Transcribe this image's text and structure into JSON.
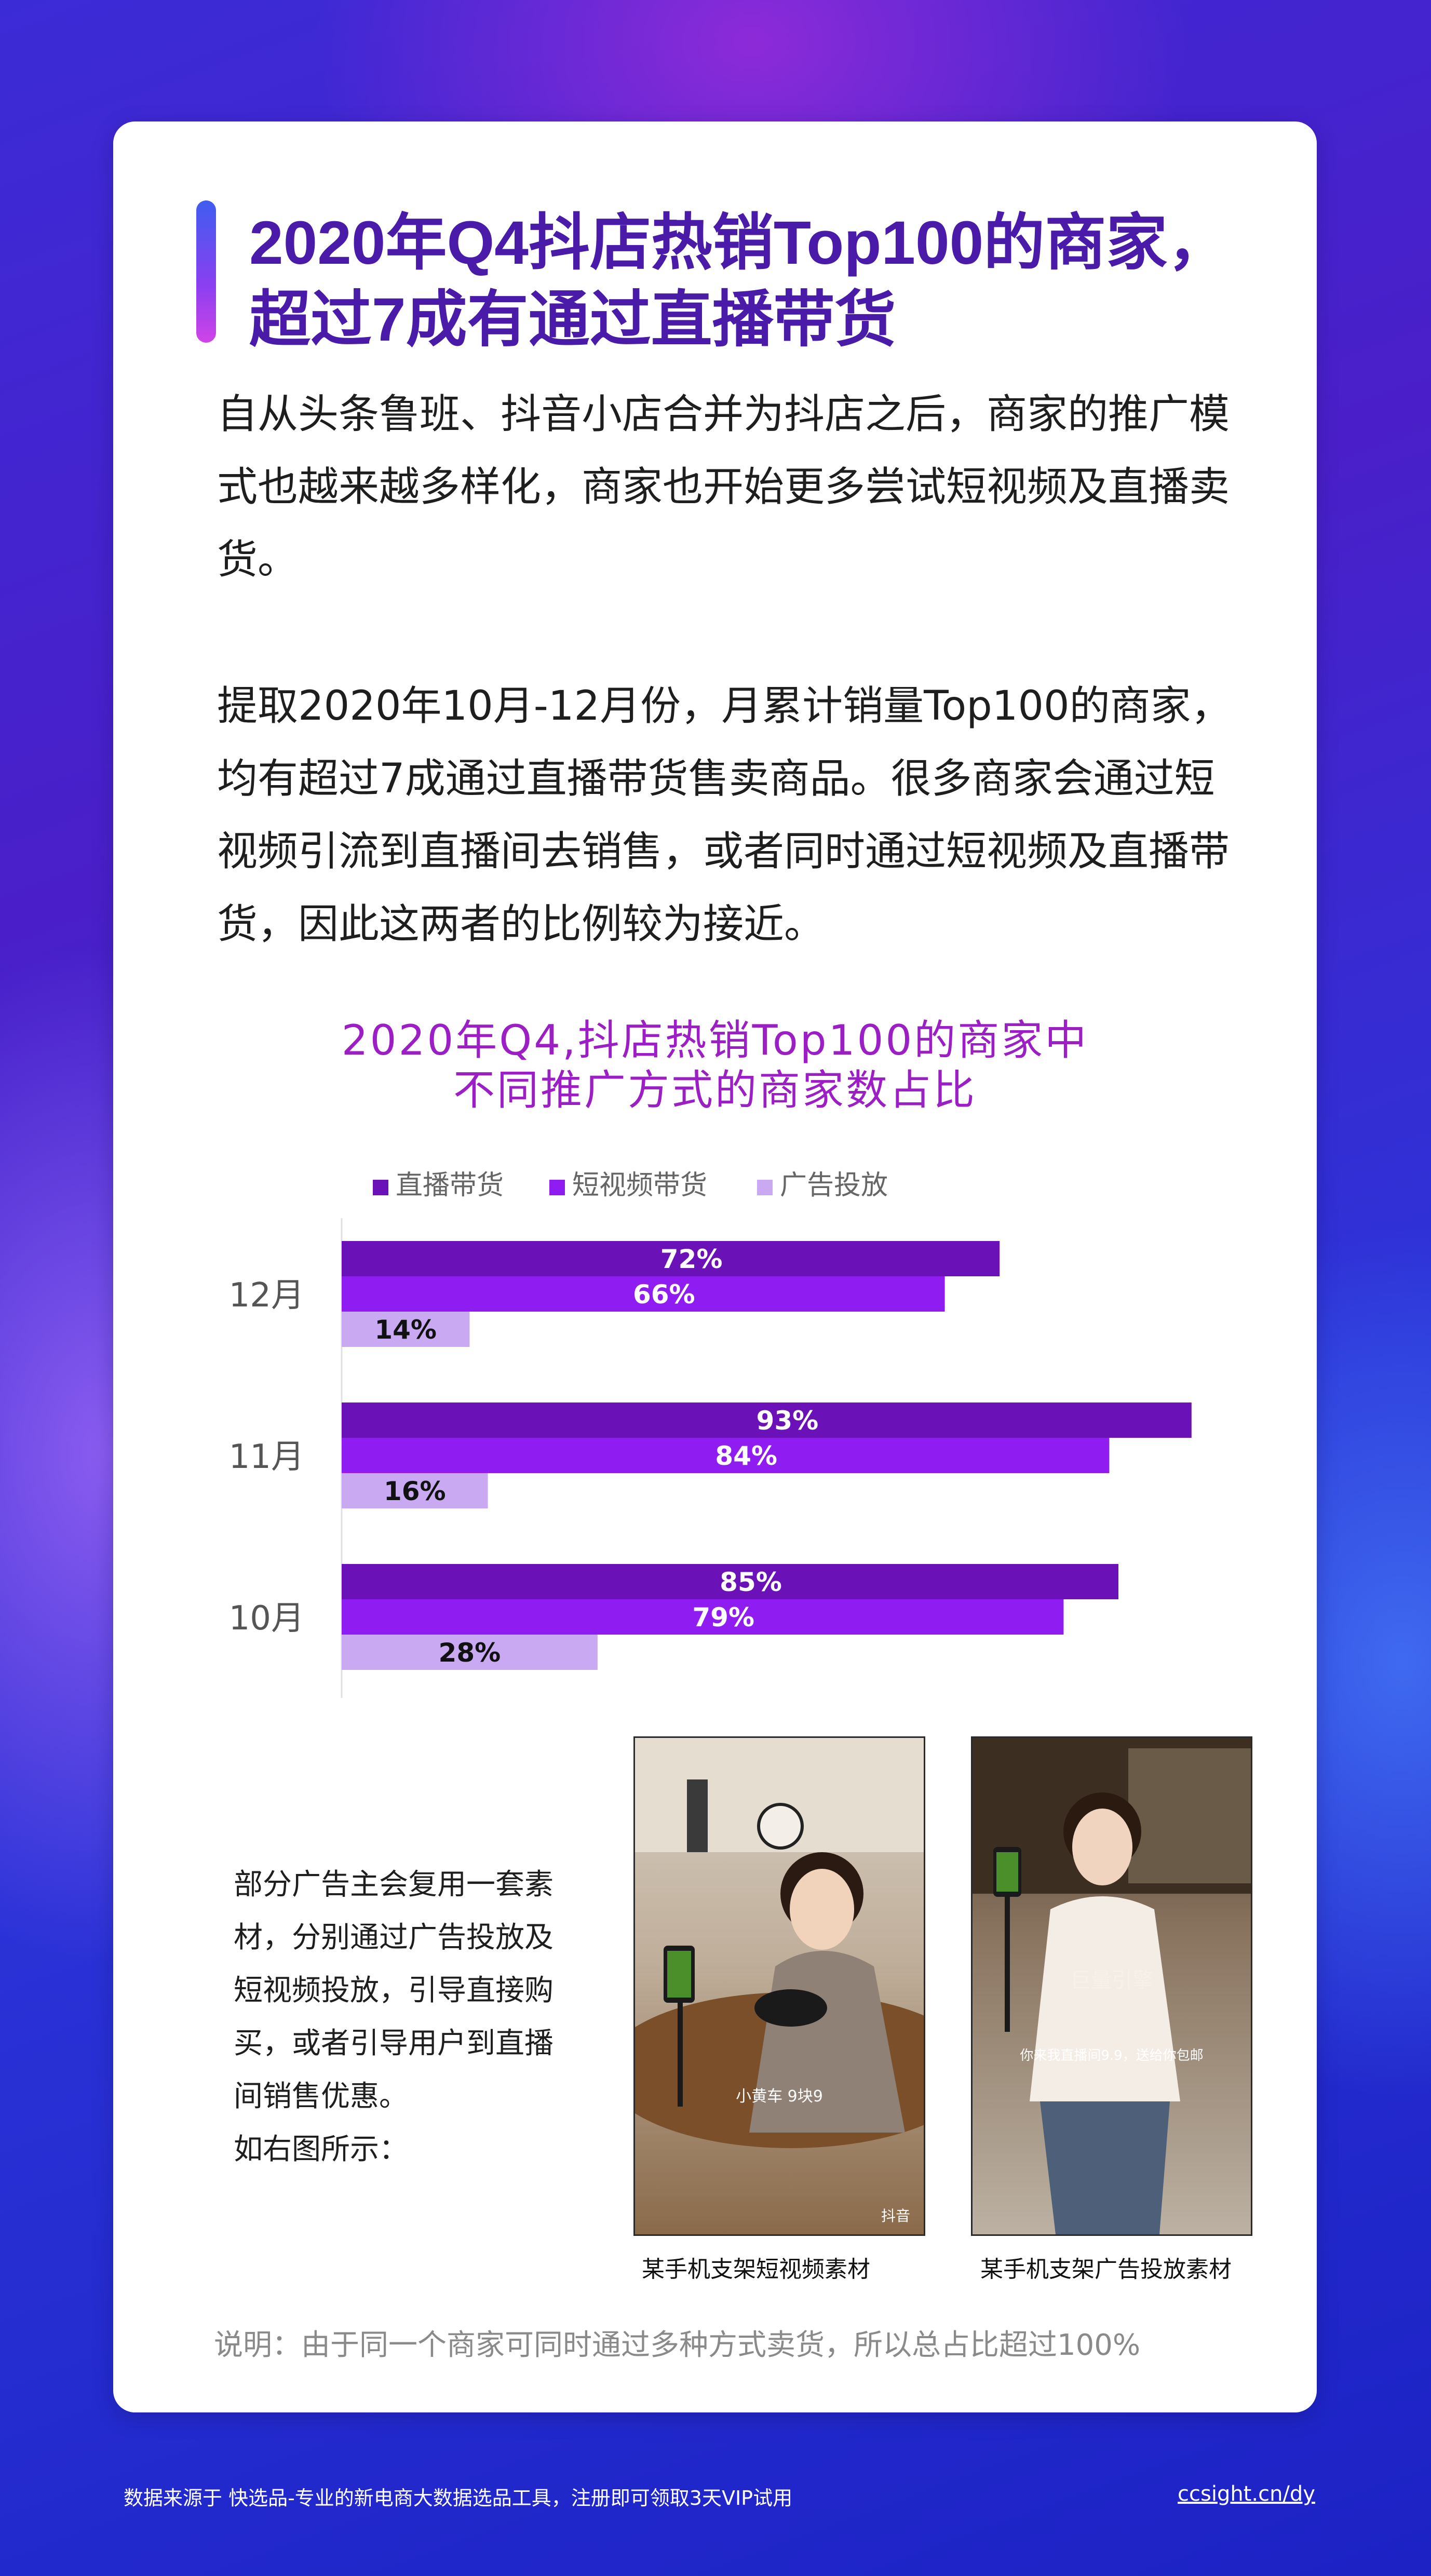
{
  "header": {
    "title_line1": "2020年Q4抖店热销Top100的商家，",
    "title_line2": "超过7成有通过直播带货"
  },
  "intro": {
    "p1_line1": "自从头条鲁班、抖音小店合并为抖店之后，商家的推广模",
    "p1_line2": "式也越来越多样化，商家也开始更多尝试短视频及直播卖",
    "p1_line3": "货。",
    "p2_line1": "提取2020年10月-12月份，月累计销量Top100的商家，",
    "p2_line2": "均有超过7成通过直播带货售卖商品。很多商家会通过短",
    "p2_line3": "视频引流到直播间去销售，或者同时通过短视频及直播带",
    "p2_line4": "货，因此这两者的比例较为接近。"
  },
  "chart_data": {
    "type": "bar",
    "orientation": "horizontal",
    "title_line1": "2020年Q4,抖店热销Top100的商家中",
    "title_line2": "不同推广方式的商家数占比",
    "categories": [
      "12月",
      "11月",
      "10月"
    ],
    "series": [
      {
        "name": "直播带货",
        "values": [
          72,
          93,
          85
        ],
        "labels": [
          "72%",
          "93%",
          "85%"
        ],
        "color": "#6a12b8",
        "label_color": "#ffffff"
      },
      {
        "name": "短视频带货",
        "values": [
          66,
          84,
          79
        ],
        "labels": [
          "66%",
          "84%",
          "79%"
        ],
        "color": "#8f1cf0",
        "label_color": "#ffffff"
      },
      {
        "name": "广告投放",
        "values": [
          14,
          16,
          28
        ],
        "labels": [
          "14%",
          "16%",
          "28%"
        ],
        "color": "#c8a9f2",
        "label_color": "#111111"
      }
    ],
    "value_unit": "%",
    "xlim": [
      0,
      100
    ],
    "legend_position": "top",
    "grid": false
  },
  "side_note": {
    "line1": "部分广告主会复用一套素",
    "line2": "材，分别通过广告投放及",
    "line3": "短视频投放，引导直接购",
    "line4": "买，或者引导用户到直播",
    "line5": "间销售优惠。",
    "line6": "如右图所示："
  },
  "photos": {
    "caption1": "某手机支架短视频素材",
    "caption2": "某手机支架广告投放素材",
    "overlay1": "小黄车 9块9",
    "watermark1": "抖音",
    "overlay2_top": "巨量引擎",
    "overlay2_bottom": "你来我直播间9.9，送给你包邮"
  },
  "note": "说明：由于同一个商家可同时通过多种方式卖货，所以总占比超过100%",
  "footer": {
    "source": "数据来源于 快选品-专业的新电商大数据选品工具，注册即可领取3天VIP试用",
    "link": "ccsight.cn/dy"
  }
}
